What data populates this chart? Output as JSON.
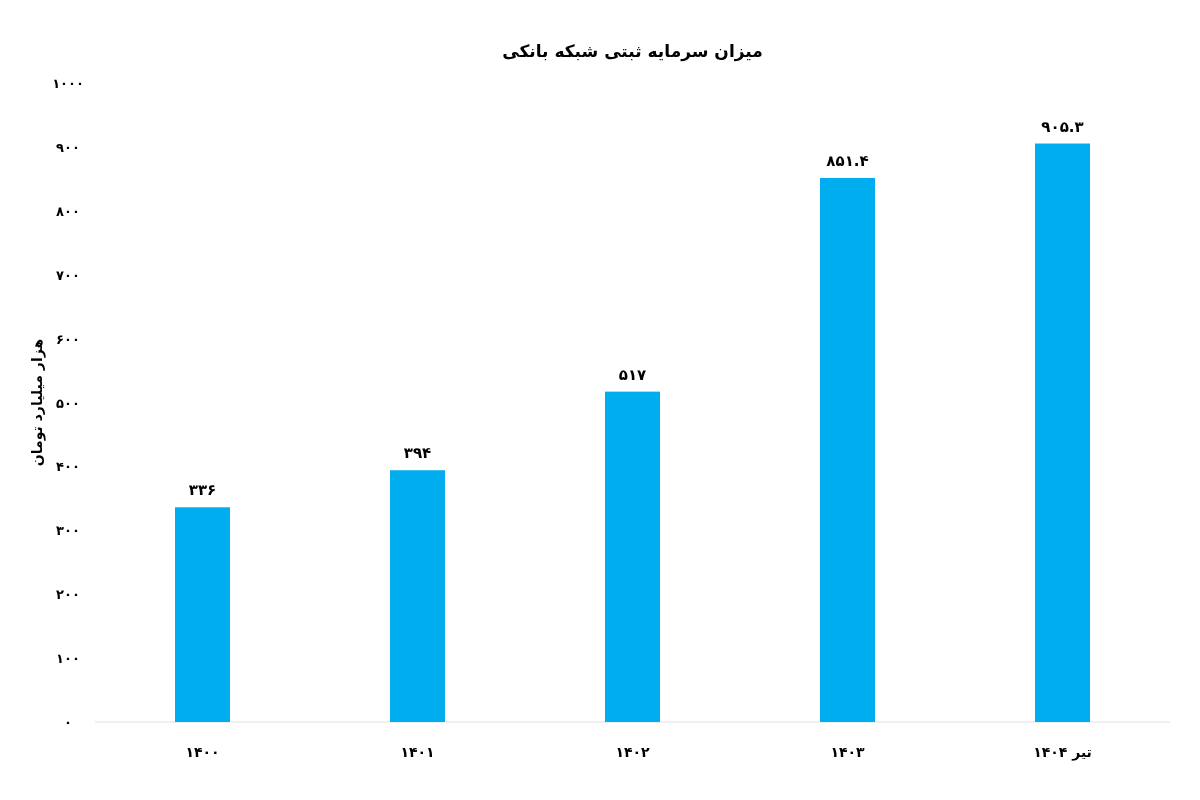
{
  "chart_data": {
    "type": "bar",
    "title": "میزان سرمایه ثبتی شبکه بانکی",
    "ylabel": "هزار میلیارد تومان",
    "categories": [
      "۱۴۰۰",
      "۱۴۰۱",
      "۱۴۰۲",
      "۱۴۰۳",
      "تیر ۱۴۰۴"
    ],
    "values": [
      336,
      394,
      517,
      851.4,
      905.3
    ],
    "value_labels": [
      "۳۳۶",
      "۳۹۴",
      "۵۱۷",
      "۸۵۱.۴",
      "۹۰۵.۳"
    ],
    "color": "#00aeef",
    "ylim": [
      0,
      1000
    ],
    "yticks": [
      {
        "value": 0,
        "label": "۰"
      },
      {
        "value": 100,
        "label": "۱۰۰"
      },
      {
        "value": 200,
        "label": "۲۰۰"
      },
      {
        "value": 300,
        "label": "۳۰۰"
      },
      {
        "value": 400,
        "label": "۴۰۰"
      },
      {
        "value": 500,
        "label": "۵۰۰"
      },
      {
        "value": 600,
        "label": "۶۰۰"
      },
      {
        "value": 700,
        "label": "۷۰۰"
      },
      {
        "value": 800,
        "label": "۸۰۰"
      },
      {
        "value": 900,
        "label": "۹۰۰"
      },
      {
        "value": 1000,
        "label": "۱۰۰۰"
      }
    ],
    "grid": false
  }
}
